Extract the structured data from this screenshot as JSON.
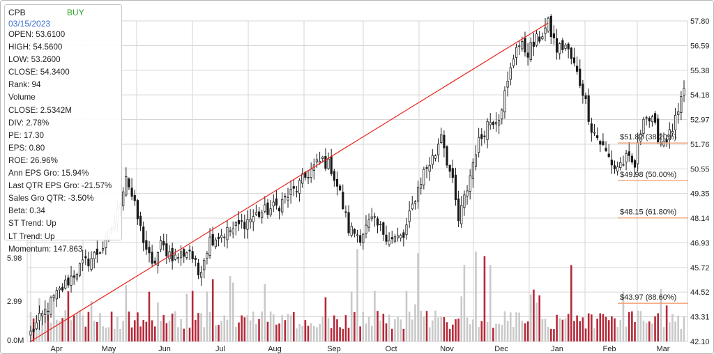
{
  "info": {
    "ticker": "CPB",
    "signal": "BUY",
    "date": "03/15/2023",
    "rows": [
      "OPEN: 53.6100",
      "HIGH: 54.5600",
      "LOW: 53.2600",
      "CLOSE: 54.3400",
      "Rank: 94",
      "Volume",
      "CLOSE: 2.5342M",
      "DIV: 2.78%",
      "PE: 17.30",
      "EPS: 0.80",
      "ROE: 26.96%",
      "Ann EPS Gro: 15.94%",
      "Last QTR EPS Gro: -21.57%",
      "Sales Gro QTR: -3.50%",
      "Beta: 0.34",
      "ST Trend: Up",
      "LT Trend: Up",
      "Momentum: 147.863"
    ]
  },
  "colors": {
    "candle": "#1a1a1a",
    "trendline": "#e8241c",
    "fib": "#f0a070",
    "volume_up": "#c9c9c9",
    "volume_down": "#b52a3a",
    "grid": "#d6d6d6"
  },
  "chart_data": {
    "type": "candlestick",
    "price_axis": {
      "ticks": [
        "57.80",
        "56.59",
        "55.38",
        "54.18",
        "52.97",
        "51.76",
        "50.55",
        "49.35",
        "48.14",
        "46.93",
        "45.72",
        "44.52",
        "43.31",
        "42.10"
      ],
      "range": [
        42.1,
        57.8
      ],
      "position": "right"
    },
    "volume_axis": {
      "ticks": [
        "5.98",
        "2.99",
        "0.0M"
      ],
      "range": [
        0,
        5.98
      ],
      "position": "left"
    },
    "x_axis": {
      "months": [
        "Apr",
        "May",
        "Jun",
        "Jul",
        "Aug",
        "Sep",
        "Oct",
        "Nov",
        "Dec",
        "Jan",
        "Feb",
        "Mar"
      ]
    },
    "grid": true,
    "close_anchors": [
      {
        "i": 0,
        "c": 42.5
      },
      {
        "i": 8,
        "c": 44.2
      },
      {
        "i": 16,
        "c": 45.6
      },
      {
        "i": 22,
        "c": 46.3
      },
      {
        "i": 26,
        "c": 46.9
      },
      {
        "i": 30,
        "c": 48.4
      },
      {
        "i": 33,
        "c": 50.3
      },
      {
        "i": 35,
        "c": 49.2
      },
      {
        "i": 38,
        "c": 47.6
      },
      {
        "i": 42,
        "c": 45.7
      },
      {
        "i": 45,
        "c": 46.8
      },
      {
        "i": 50,
        "c": 46.2
      },
      {
        "i": 55,
        "c": 46.6
      },
      {
        "i": 58,
        "c": 45.4
      },
      {
        "i": 62,
        "c": 47.1
      },
      {
        "i": 70,
        "c": 47.6
      },
      {
        "i": 78,
        "c": 48.3
      },
      {
        "i": 85,
        "c": 48.7
      },
      {
        "i": 92,
        "c": 49.6
      },
      {
        "i": 97,
        "c": 50.5
      },
      {
        "i": 101,
        "c": 51.0
      },
      {
        "i": 104,
        "c": 50.6
      },
      {
        "i": 107,
        "c": 49.3
      },
      {
        "i": 110,
        "c": 47.6
      },
      {
        "i": 114,
        "c": 47.3
      },
      {
        "i": 118,
        "c": 48.0
      },
      {
        "i": 121,
        "c": 47.6
      },
      {
        "i": 125,
        "c": 47.1
      },
      {
        "i": 129,
        "c": 47.2
      },
      {
        "i": 133,
        "c": 49.2
      },
      {
        "i": 136,
        "c": 50.4
      },
      {
        "i": 140,
        "c": 51.3
      },
      {
        "i": 142,
        "c": 52.4
      },
      {
        "i": 144,
        "c": 51.0
      },
      {
        "i": 146,
        "c": 49.8
      },
      {
        "i": 148,
        "c": 48.0
      },
      {
        "i": 151,
        "c": 49.6
      },
      {
        "i": 154,
        "c": 51.5
      },
      {
        "i": 158,
        "c": 52.8
      },
      {
        "i": 162,
        "c": 53.2
      },
      {
        "i": 165,
        "c": 54.7
      },
      {
        "i": 168,
        "c": 56.7
      },
      {
        "i": 172,
        "c": 56.3
      },
      {
        "i": 176,
        "c": 57.0
      },
      {
        "i": 179,
        "c": 57.6
      },
      {
        "i": 182,
        "c": 56.4
      },
      {
        "i": 185,
        "c": 56.6
      },
      {
        "i": 188,
        "c": 55.6
      },
      {
        "i": 191,
        "c": 54.4
      },
      {
        "i": 194,
        "c": 52.6
      },
      {
        "i": 198,
        "c": 51.6
      },
      {
        "i": 202,
        "c": 50.6
      },
      {
        "i": 206,
        "c": 51.0
      },
      {
        "i": 209,
        "c": 50.7
      },
      {
        "i": 212,
        "c": 53.3
      },
      {
        "i": 215,
        "c": 52.8
      },
      {
        "i": 218,
        "c": 51.9
      },
      {
        "i": 221,
        "c": 52.2
      },
      {
        "i": 224,
        "c": 53.2
      },
      {
        "i": 226,
        "c": 54.3
      }
    ],
    "trendline": {
      "from": {
        "i": 0,
        "price": 42.1
      },
      "to": {
        "i": 179,
        "price": 57.7
      }
    },
    "fib_levels": [
      {
        "label": "$51.82 (38.20%)",
        "price": 51.82
      },
      {
        "label": "$49.98 (50.00%)",
        "price": 49.98
      },
      {
        "label": "$48.15 (61.80%)",
        "price": 48.15
      },
      {
        "label": "$43.97 (88.60%)",
        "price": 43.97
      }
    ]
  }
}
